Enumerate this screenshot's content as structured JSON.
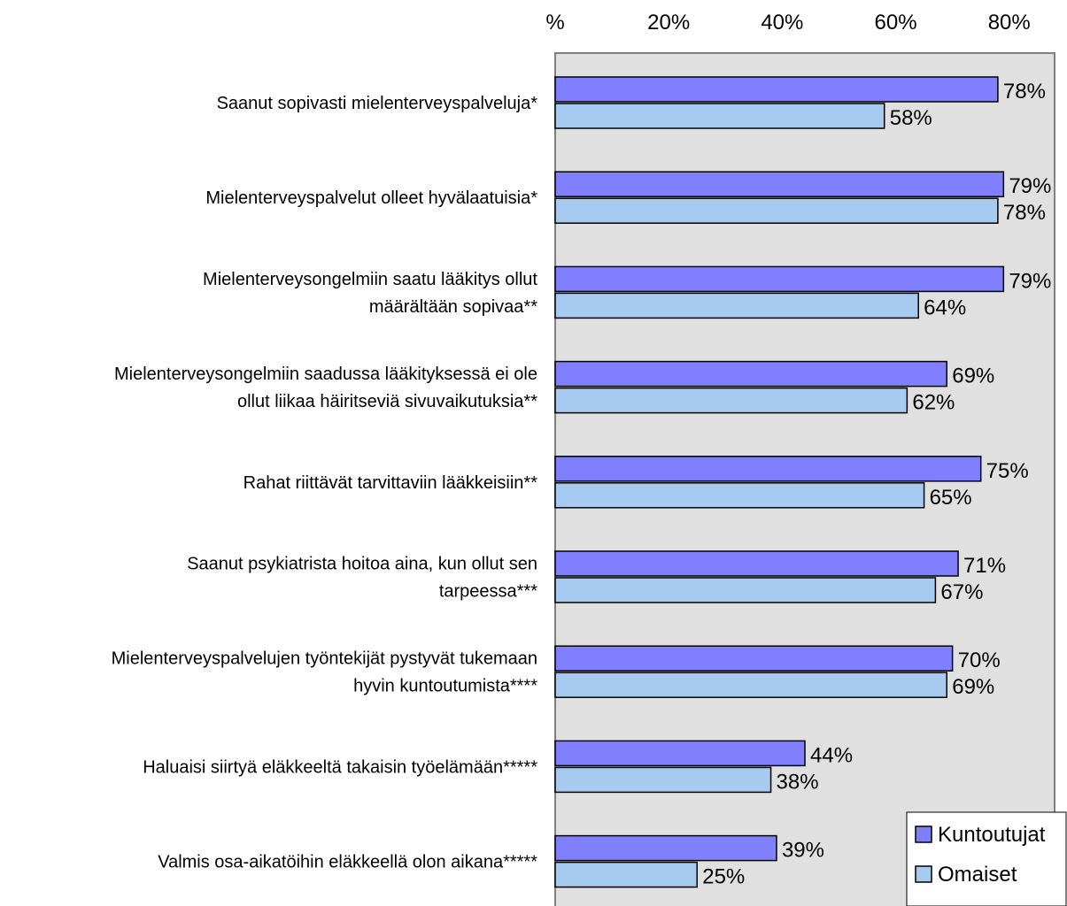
{
  "chart_data": {
    "type": "bar",
    "orientation": "horizontal",
    "xlim": [
      0,
      88
    ],
    "x_ticks": [
      {
        "value": 0,
        "label": "%"
      },
      {
        "value": 20,
        "label": "20%"
      },
      {
        "value": 40,
        "label": "40%"
      },
      {
        "value": 60,
        "label": "60%"
      },
      {
        "value": 80,
        "label": "80%"
      }
    ],
    "x_axis_position": "top",
    "plot_background": "#e0e0e0",
    "grid": false,
    "legend_position": "bottom-right",
    "categories": [
      [
        "Saanut sopivasti mielenterveyspalveluja*"
      ],
      [
        "Mielenterveyspalvelut olleet hyvälaatuisia*"
      ],
      [
        "Mielenterveysongelmiin saatu lääkitys ollut",
        "määrältään sopivaa**"
      ],
      [
        "Mielenterveysongelmiin saadussa lääkityksessä ei ole",
        "ollut liikaa häiritseviä sivuvaikutuksia**"
      ],
      [
        "Rahat riittävät tarvittaviin lääkkeisiin**"
      ],
      [
        "Saanut psykiatrista hoitoa aina, kun ollut sen",
        "tarpeessa***"
      ],
      [
        "Mielenterveyspalvelujen työntekijät pystyvät tukemaan",
        "hyvin kuntoutumista****"
      ],
      [
        "Haluaisi siirtyä eläkkeeltä takaisin työelämään*****"
      ],
      [
        "Valmis osa-aikatöihin eläkkeellä olon aikana*****"
      ]
    ],
    "series": [
      {
        "name": "Kuntoutujat",
        "color": "#8080ff",
        "values": [
          78,
          79,
          79,
          69,
          75,
          71,
          70,
          44,
          39
        ]
      },
      {
        "name": "Omaiset",
        "color": "#a6caf0",
        "values": [
          58,
          78,
          64,
          62,
          65,
          67,
          69,
          38,
          25
        ]
      }
    ],
    "value_suffix": "%"
  }
}
